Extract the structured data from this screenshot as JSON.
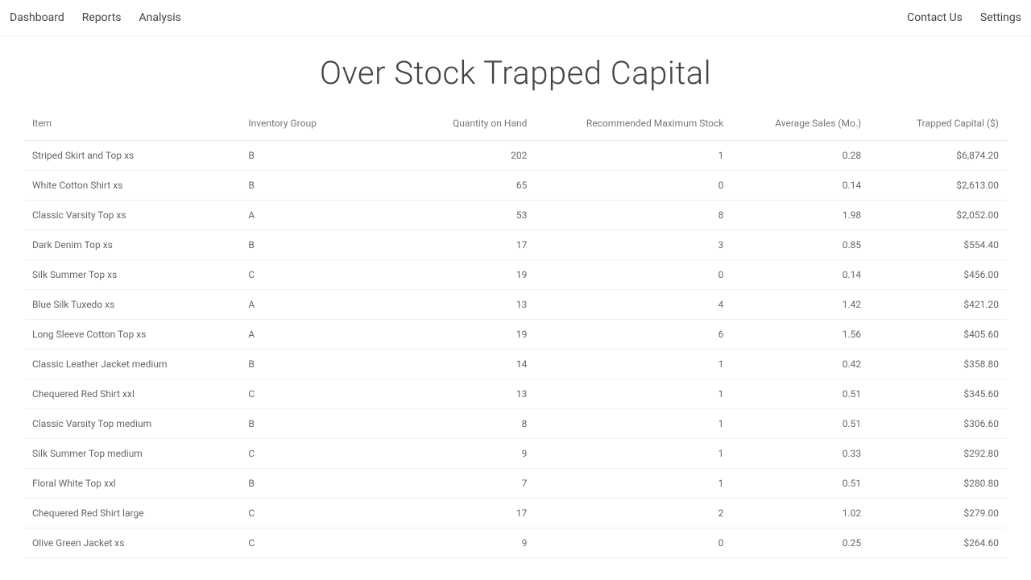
{
  "nav": {
    "left": [
      "Dashboard",
      "Reports",
      "Analysis"
    ],
    "right": [
      "Contact Us",
      "Settings"
    ]
  },
  "title": "Over Stock Trapped Capital",
  "table": {
    "columns": [
      "Item",
      "Inventory Group",
      "Quantity on Hand",
      "Recommended Maximum Stock",
      "Average Sales (Mo.)",
      "Trapped Capital ($)"
    ],
    "rows": [
      [
        "Striped Skirt and Top xs",
        "B",
        "202",
        "1",
        "0.28",
        "$6,874.20"
      ],
      [
        "White Cotton Shirt xs",
        "B",
        "65",
        "0",
        "0.14",
        "$2,613.00"
      ],
      [
        "Classic Varsity Top xs",
        "A",
        "53",
        "8",
        "1.98",
        "$2,052.00"
      ],
      [
        "Dark Denim Top xs",
        "B",
        "17",
        "3",
        "0.85",
        "$554.40"
      ],
      [
        "Silk Summer Top xs",
        "C",
        "19",
        "0",
        "0.14",
        "$456.00"
      ],
      [
        "Blue Silk Tuxedo xs",
        "A",
        "13",
        "4",
        "1.42",
        "$421.20"
      ],
      [
        "Long Sleeve Cotton Top xs",
        "A",
        "19",
        "6",
        "1.56",
        "$405.60"
      ],
      [
        "Classic Leather Jacket medium",
        "B",
        "14",
        "1",
        "0.42",
        "$358.80"
      ],
      [
        "Chequered Red Shirt xxl",
        "C",
        "13",
        "1",
        "0.51",
        "$345.60"
      ],
      [
        "Classic Varsity Top medium",
        "B",
        "8",
        "1",
        "0.51",
        "$306.60"
      ],
      [
        "Silk Summer Top medium",
        "C",
        "9",
        "1",
        "0.33",
        "$292.80"
      ],
      [
        "Floral White Top xxl",
        "B",
        "7",
        "1",
        "0.51",
        "$280.80"
      ],
      [
        "Chequered Red Shirt large",
        "C",
        "17",
        "2",
        "1.02",
        "$279.00"
      ],
      [
        "Olive Green Jacket xs",
        "C",
        "9",
        "0",
        "0.25",
        "$264.60"
      ]
    ]
  }
}
